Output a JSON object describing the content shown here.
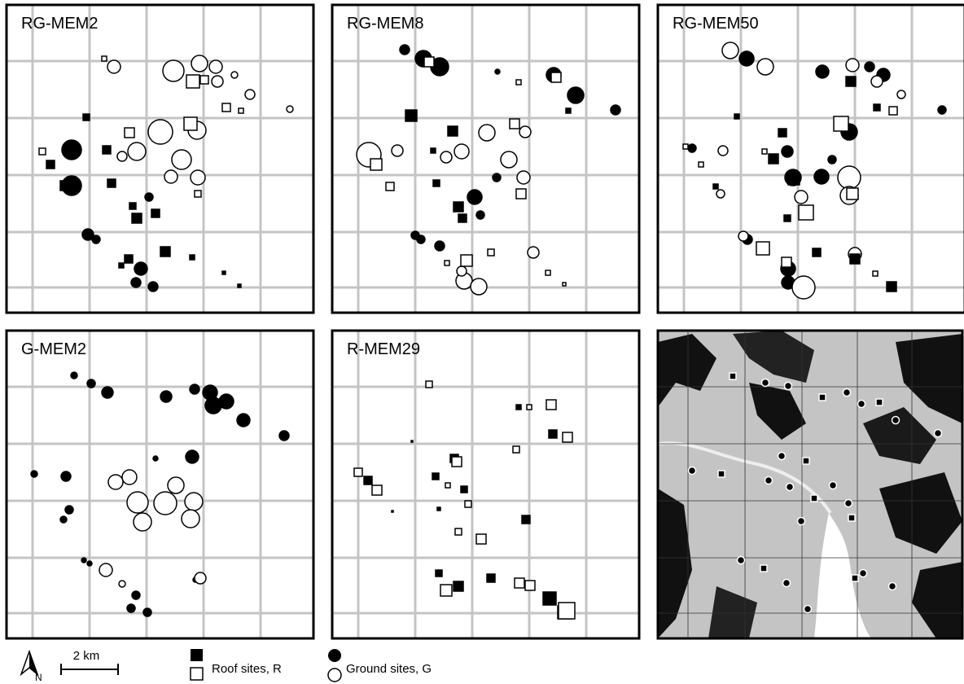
{
  "panels": [
    {
      "title": "RG-MEM2"
    },
    {
      "title": "RG-MEM8"
    },
    {
      "title": "RG-MEM50"
    },
    {
      "title": "G-MEM2"
    },
    {
      "title": "R-MEM29"
    }
  ],
  "legend": {
    "north": "N",
    "scale": "2 km",
    "roof": "Roof sites, R",
    "ground": "Ground sites, G"
  }
}
